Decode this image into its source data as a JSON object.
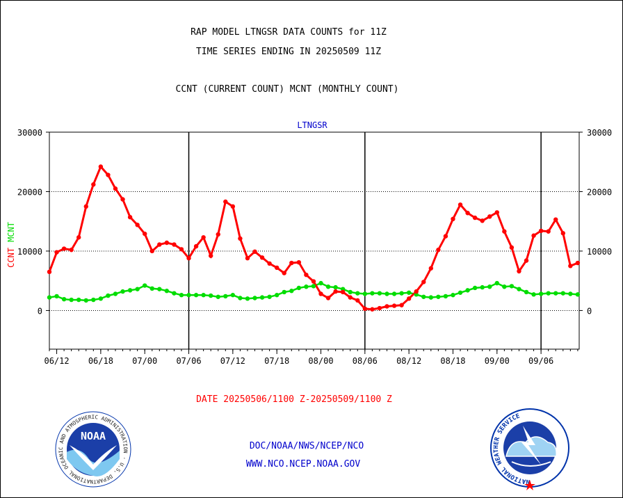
{
  "header": {
    "title_line1": "RAP MODEL LTNGSR DATA COUNTS for 11Z",
    "title_line2": "TIME SERIES ENDING IN 20250509 11Z",
    "subtitle": "CCNT (CURRENT COUNT) MCNT (MONTHLY COUNT)"
  },
  "footer": {
    "date_range": "DATE 20250506/1100 Z-20250509/1100 Z",
    "agency": "DOC/NOAA/NWS/NCEP/NCO",
    "website": "WWW.NCO.NCEP.NOAA.GOV"
  },
  "logos": {
    "noaa": "NOAA",
    "noaa_ring": "NATIONAL OCEANIC AND ATMOSPHERIC ADMINISTRATION · U.S. DEPARTMENT OF COMMERCE ·",
    "nws_ring": "NATIONAL WEATHER SERVICE"
  },
  "colors": {
    "ccnt": "#ff0000",
    "mcnt": "#00dd00",
    "plot_title": "#0000cc",
    "footer_date": "#ff0000",
    "footer_links": "#0000cc"
  },
  "chart_data": {
    "type": "line",
    "title": "LTNGSR",
    "ylabel_parts": [
      {
        "text": "CCNT",
        "color": "#ff0000"
      },
      {
        "text": "MCNT",
        "color": "#00dd00"
      }
    ],
    "ylim": [
      -6500,
      30000
    ],
    "yticks": [
      30000,
      20000,
      10000,
      0
    ],
    "x_tick_labels": [
      "06/12",
      "06/18",
      "07/00",
      "07/06",
      "07/12",
      "07/18",
      "08/00",
      "08/06",
      "08/12",
      "08/18",
      "09/00",
      "09/06"
    ],
    "x_tick_positions": [
      1,
      7,
      13,
      19,
      25,
      31,
      37,
      43,
      49,
      55,
      61,
      67
    ],
    "xlim": [
      0,
      72.2
    ],
    "vertical_major_lines": [
      19,
      43,
      67
    ],
    "horizontal_grid": [
      20000,
      10000,
      0
    ],
    "series": [
      {
        "name": "CCNT",
        "color": "#ff0000",
        "x": [
          0,
          1,
          2,
          3,
          4,
          5,
          6,
          7,
          8,
          9,
          10,
          11,
          12,
          13,
          14,
          15,
          16,
          17,
          18,
          19,
          20,
          21,
          22,
          23,
          24,
          25,
          26,
          27,
          28,
          29,
          30,
          31,
          32,
          33,
          34,
          35,
          36,
          37,
          38,
          39,
          40,
          41,
          42,
          43,
          44,
          45,
          46,
          47,
          48,
          49,
          50,
          51,
          52,
          53,
          54,
          55,
          56,
          57,
          58,
          59,
          60,
          61,
          62,
          63,
          64,
          65,
          66,
          67,
          68,
          69,
          70,
          71,
          72
        ],
        "values": [
          6500,
          9800,
          10400,
          10200,
          12300,
          17500,
          21200,
          24200,
          22800,
          20500,
          18700,
          15700,
          14400,
          12900,
          10000,
          11100,
          11400,
          11100,
          10300,
          8800,
          10800,
          12300,
          9200,
          12800,
          18300,
          17500,
          12100,
          8800,
          9900,
          8900,
          7900,
          7200,
          6300,
          8000,
          8100,
          6000,
          4900,
          2800,
          2100,
          3200,
          3100,
          2200,
          1700,
          300,
          200,
          400,
          700,
          800,
          900,
          2000,
          3200,
          4800,
          7100,
          10200,
          12500,
          15400,
          17800,
          16400,
          15600,
          15100,
          15800,
          16500,
          13300,
          10600,
          6600,
          8400,
          12600,
          13400,
          13300,
          15300,
          13000,
          7500,
          8000
        ]
      },
      {
        "name": "MCNT",
        "color": "#00dd00",
        "x": [
          0,
          1,
          2,
          3,
          4,
          5,
          6,
          7,
          8,
          9,
          10,
          11,
          12,
          13,
          14,
          15,
          16,
          17,
          18,
          19,
          20,
          21,
          22,
          23,
          24,
          25,
          26,
          27,
          28,
          29,
          30,
          31,
          32,
          33,
          34,
          35,
          36,
          37,
          38,
          39,
          40,
          41,
          42,
          43,
          44,
          45,
          46,
          47,
          48,
          49,
          50,
          51,
          52,
          53,
          54,
          55,
          56,
          57,
          58,
          59,
          60,
          61,
          62,
          63,
          64,
          65,
          66,
          67,
          68,
          69,
          70,
          71,
          72
        ],
        "values": [
          2200,
          2400,
          1900,
          1800,
          1800,
          1700,
          1800,
          2000,
          2500,
          2800,
          3200,
          3400,
          3600,
          4200,
          3700,
          3600,
          3300,
          2900,
          2600,
          2600,
          2600,
          2600,
          2500,
          2300,
          2400,
          2600,
          2100,
          2000,
          2100,
          2200,
          2300,
          2600,
          3100,
          3300,
          3800,
          4000,
          4100,
          4600,
          4000,
          3900,
          3600,
          3100,
          2900,
          2800,
          2900,
          2900,
          2800,
          2800,
          2900,
          3000,
          2700,
          2300,
          2200,
          2300,
          2400,
          2600,
          3000,
          3400,
          3800,
          3900,
          4000,
          4600,
          4000,
          4100,
          3600,
          3100,
          2700,
          2800,
          2900,
          2900,
          2900,
          2800,
          2700
        ]
      }
    ]
  }
}
